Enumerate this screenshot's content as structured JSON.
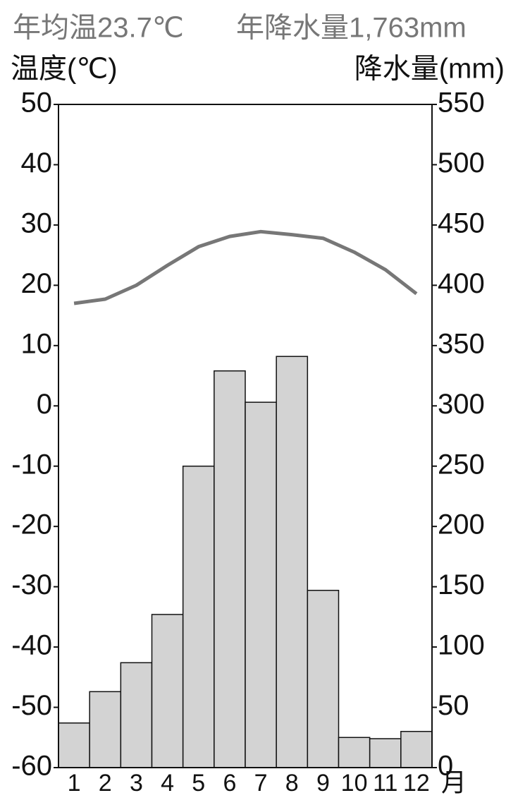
{
  "chart_data": {
    "type": "bar",
    "title": "年均温23.7℃",
    "subtitle": "年降水量1,763mm",
    "ylabel": "温度(℃)",
    "y2label": "降水量(mm)",
    "xlabel": "月",
    "categories": [
      "1",
      "2",
      "3",
      "4",
      "5",
      "6",
      "7",
      "8",
      "9",
      "10",
      "11",
      "12"
    ],
    "series": [
      {
        "name": "温度",
        "type": "line",
        "axis": "y",
        "color": "#777777",
        "values": [
          17.0,
          17.7,
          20.0,
          23.3,
          26.4,
          28.1,
          28.9,
          28.4,
          27.8,
          25.5,
          22.6,
          18.6
        ]
      },
      {
        "name": "降水量",
        "type": "bar",
        "axis": "y2",
        "color": "#d3d3d3",
        "values": [
          37,
          63,
          87,
          127,
          250,
          329,
          303,
          341,
          147,
          25,
          24,
          30
        ]
      }
    ],
    "ylim": [
      -60,
      50
    ],
    "yticks": [
      -60,
      -50,
      -40,
      -30,
      -20,
      -10,
      0,
      10,
      20,
      30,
      40,
      50
    ],
    "y2lim": [
      0,
      550
    ],
    "y2ticks": [
      0,
      50,
      100,
      150,
      200,
      250,
      300,
      350,
      400,
      450,
      500,
      550
    ]
  }
}
